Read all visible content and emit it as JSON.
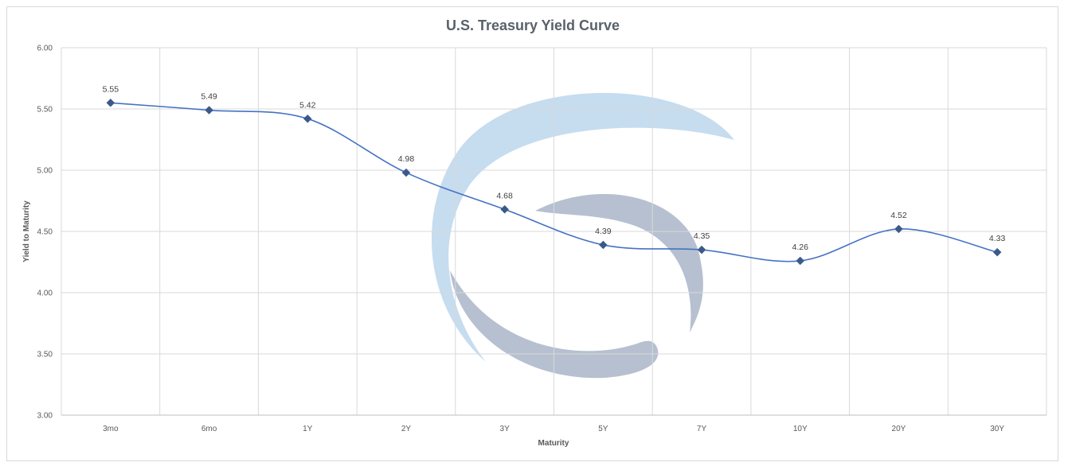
{
  "chart_data": {
    "type": "line",
    "title": "U.S. Treasury Yield Curve",
    "xlabel": "Maturity",
    "ylabel": "Yield to Maturity",
    "categories": [
      "3mo",
      "6mo",
      "1Y",
      "2Y",
      "3Y",
      "5Y",
      "7Y",
      "10Y",
      "20Y",
      "30Y"
    ],
    "series": [
      {
        "values": [
          5.55,
          5.49,
          5.42,
          4.98,
          4.68,
          4.39,
          4.35,
          4.26,
          4.52,
          4.33
        ],
        "color": "#4472c4",
        "marker_color": "#3b5a8a",
        "marker": "diamond",
        "smooth": true
      }
    ],
    "data_labels": [
      "5.55",
      "5.49",
      "5.42",
      "4.98",
      "4.68",
      "4.39",
      "4.35",
      "4.26",
      "4.52",
      "4.33"
    ],
    "ylim": [
      3.0,
      6.0
    ],
    "yticks": [
      "3.00",
      "3.50",
      "4.00",
      "4.50",
      "5.00",
      "5.50",
      "6.00"
    ],
    "grid": true,
    "legend": "none",
    "watermark_colors": [
      "#bcd6ec",
      "#a9b5c8"
    ]
  }
}
